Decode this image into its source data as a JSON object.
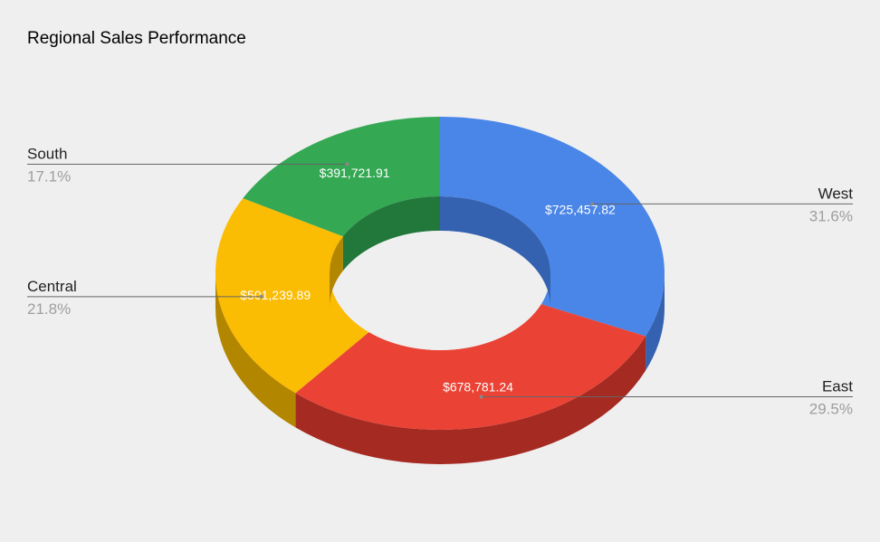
{
  "chart_data": {
    "type": "pie",
    "donut": true,
    "three_d": true,
    "title": "Regional Sales Performance",
    "background": "#efefef",
    "legend": "labeled-callouts",
    "slices": [
      {
        "label": "West",
        "value": 725457.82,
        "value_label": "$725,457.82",
        "percent_label": "31.6%",
        "color": "#4a86e8",
        "side_color": "#3462b0"
      },
      {
        "label": "East",
        "value": 678781.24,
        "value_label": "$678,781.24",
        "percent_label": "29.5%",
        "color": "#ea4335",
        "side_color": "#a52a22"
      },
      {
        "label": "Central",
        "value": 501239.89,
        "value_label": "$501,239.89",
        "percent_label": "21.8%",
        "color": "#fbbc04",
        "side_color": "#b38600"
      },
      {
        "label": "South",
        "value": 391721.91,
        "value_label": "$391,721.91",
        "percent_label": "17.1%",
        "color": "#34a853",
        "side_color": "#22773b"
      }
    ]
  }
}
